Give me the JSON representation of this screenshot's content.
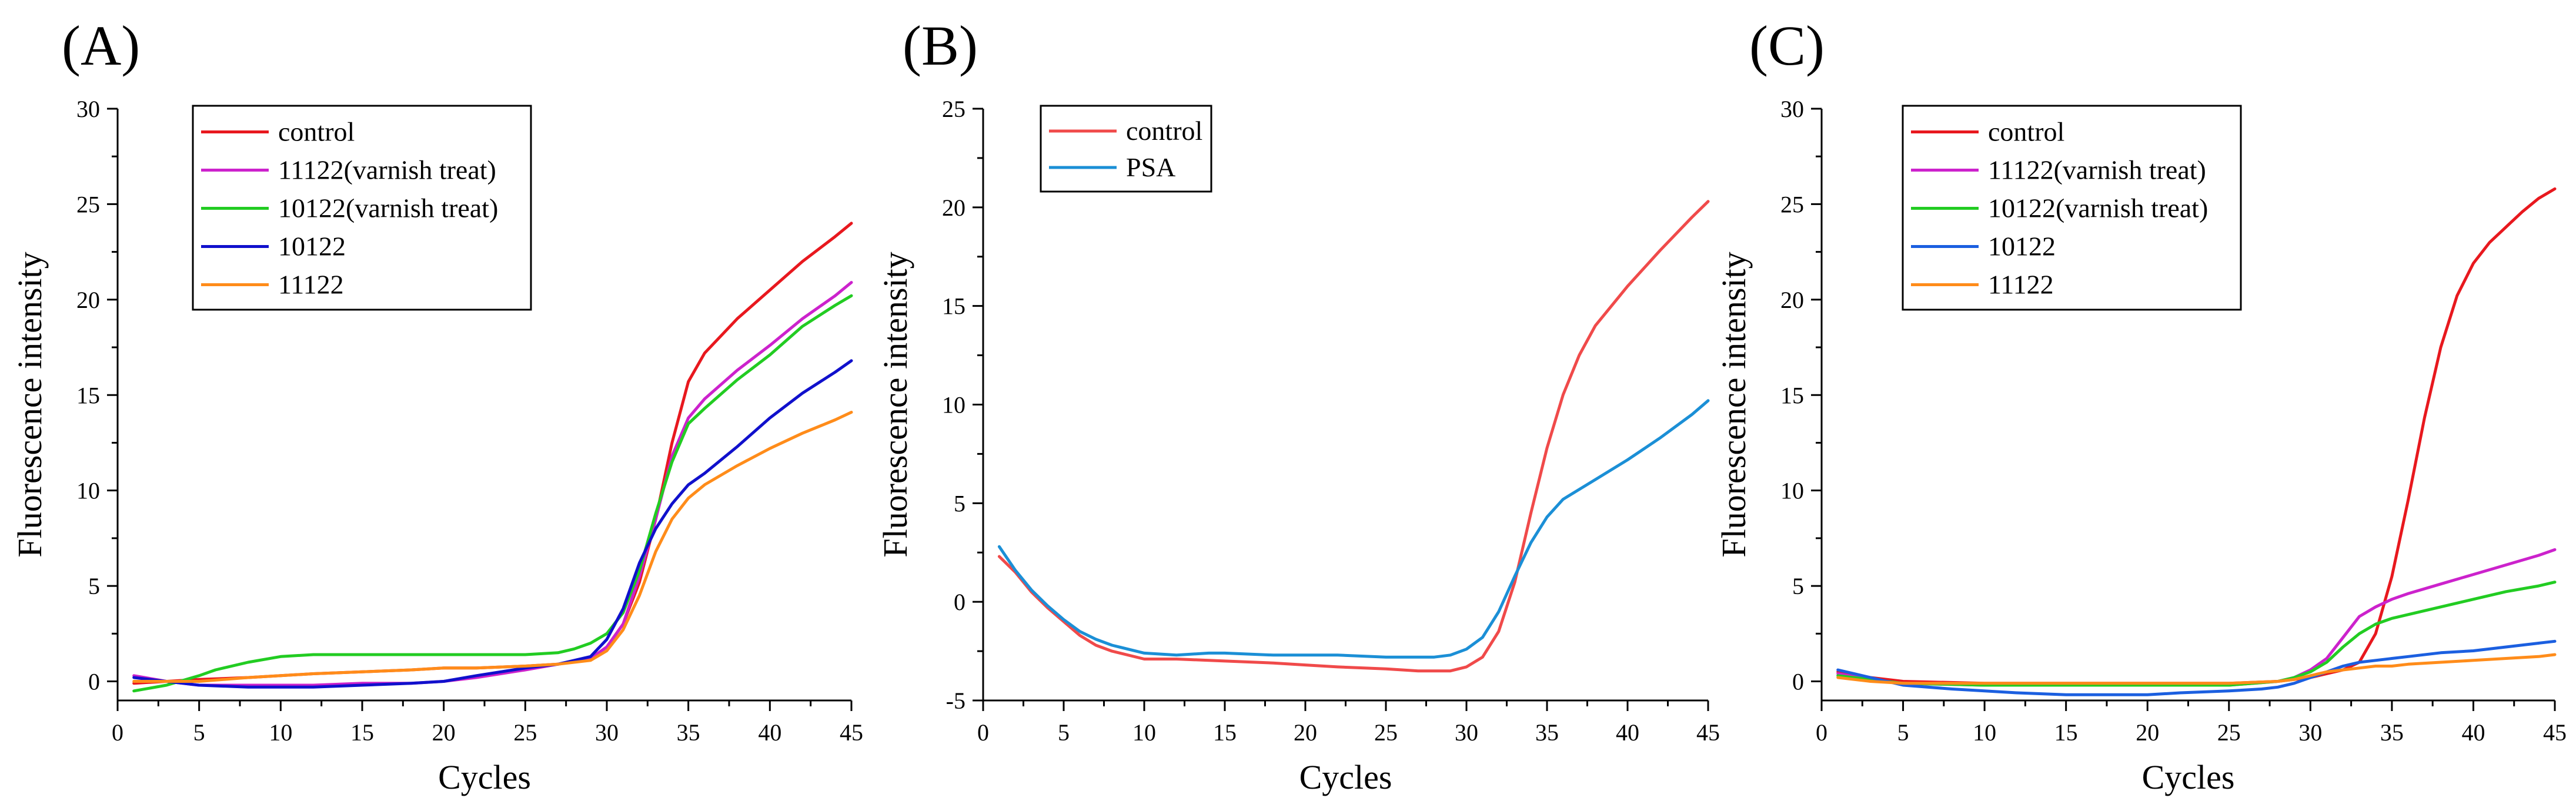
{
  "figure": {
    "panel_count": 3
  },
  "chart_data": [
    {
      "type": "line",
      "panel_label": "(A)",
      "xlabel": "Cycles",
      "ylabel": "Fluorescence intensity",
      "xlim": [
        0,
        45
      ],
      "ylim": [
        -1,
        30
      ],
      "xticks": [
        0,
        5,
        10,
        15,
        20,
        25,
        30,
        35,
        40,
        45
      ],
      "yticks": [
        0,
        5,
        10,
        15,
        20,
        25,
        30
      ],
      "legend": "top-left",
      "series": [
        {
          "name": "control",
          "color": "#e8181e",
          "x": [
            1,
            3,
            5,
            8,
            10,
            12,
            15,
            18,
            20,
            22,
            25,
            27,
            29,
            30,
            31,
            32,
            33,
            34,
            35,
            36,
            38,
            40,
            42,
            44,
            45
          ],
          "y": [
            -0.1,
            0,
            0.1,
            0.2,
            0.3,
            0.4,
            0.5,
            0.6,
            0.7,
            0.7,
            0.8,
            0.9,
            1.2,
            1.8,
            3.0,
            5.2,
            8.5,
            12.5,
            15.7,
            17.2,
            19.0,
            20.5,
            22.0,
            23.3,
            24.0
          ]
        },
        {
          "name": "11122(varnish treat)",
          "color": "#cc22cc",
          "x": [
            1,
            3,
            5,
            8,
            10,
            12,
            15,
            18,
            20,
            22,
            25,
            27,
            29,
            30,
            31,
            32,
            33,
            34,
            35,
            36,
            38,
            40,
            42,
            44,
            45
          ],
          "y": [
            0.3,
            0,
            -0.2,
            -0.2,
            -0.2,
            -0.2,
            -0.1,
            -0.1,
            0,
            0.2,
            0.6,
            0.9,
            1.2,
            1.8,
            3.0,
            5.5,
            8.5,
            11.8,
            13.8,
            14.8,
            16.3,
            17.6,
            19.0,
            20.2,
            20.9
          ]
        },
        {
          "name": "10122(varnish treat)",
          "color": "#22cc22",
          "x": [
            1,
            3,
            5,
            6,
            8,
            10,
            12,
            15,
            18,
            20,
            22,
            25,
            27,
            28,
            29,
            30,
            31,
            32,
            33,
            34,
            35,
            36,
            38,
            40,
            42,
            44,
            45
          ],
          "y": [
            -0.5,
            -0.2,
            0.3,
            0.6,
            1.0,
            1.3,
            1.4,
            1.4,
            1.4,
            1.4,
            1.4,
            1.4,
            1.5,
            1.7,
            2.0,
            2.5,
            3.6,
            5.8,
            8.8,
            11.5,
            13.5,
            14.3,
            15.8,
            17.1,
            18.6,
            19.7,
            20.2
          ]
        },
        {
          "name": "10122",
          "color": "#1010cc",
          "x": [
            1,
            3,
            5,
            8,
            10,
            12,
            15,
            18,
            20,
            22,
            25,
            27,
            29,
            30,
            31,
            32,
            33,
            34,
            35,
            36,
            38,
            40,
            42,
            44,
            45
          ],
          "y": [
            0.2,
            0,
            -0.2,
            -0.3,
            -0.3,
            -0.3,
            -0.2,
            -0.1,
            0,
            0.3,
            0.7,
            0.9,
            1.3,
            2.2,
            3.8,
            6.2,
            8.0,
            9.3,
            10.3,
            10.9,
            12.3,
            13.8,
            15.1,
            16.2,
            16.8
          ]
        },
        {
          "name": "11122",
          "color": "#ff8c1a",
          "x": [
            1,
            3,
            5,
            8,
            10,
            12,
            15,
            18,
            20,
            22,
            25,
            27,
            29,
            30,
            31,
            32,
            33,
            34,
            35,
            36,
            38,
            40,
            42,
            44,
            45
          ],
          "y": [
            0,
            0,
            0,
            0.2,
            0.3,
            0.4,
            0.5,
            0.6,
            0.7,
            0.7,
            0.8,
            0.9,
            1.1,
            1.6,
            2.7,
            4.5,
            6.8,
            8.5,
            9.6,
            10.3,
            11.3,
            12.2,
            13.0,
            13.7,
            14.1
          ]
        }
      ]
    },
    {
      "type": "line",
      "panel_label": "(B)",
      "xlabel": "Cycles",
      "ylabel": "Fluorescence intensity",
      "xlim": [
        0,
        45
      ],
      "ylim": [
        -5,
        25
      ],
      "xticks": [
        0,
        5,
        10,
        15,
        20,
        25,
        30,
        35,
        40,
        45
      ],
      "yticks": [
        -5,
        0,
        5,
        10,
        15,
        20,
        25
      ],
      "legend": "top-left",
      "series": [
        {
          "name": "control",
          "color": "#f04a4a",
          "x": [
            1,
            2,
            3,
            4,
            5,
            6,
            7,
            8,
            10,
            12,
            15,
            18,
            20,
            22,
            25,
            27,
            28,
            29,
            30,
            31,
            32,
            33,
            34,
            35,
            36,
            37,
            38,
            40,
            42,
            44,
            45
          ],
          "y": [
            2.3,
            1.5,
            0.5,
            -0.3,
            -1.0,
            -1.7,
            -2.2,
            -2.5,
            -2.9,
            -2.9,
            -3.0,
            -3.1,
            -3.2,
            -3.3,
            -3.4,
            -3.5,
            -3.5,
            -3.5,
            -3.3,
            -2.8,
            -1.5,
            1.0,
            4.5,
            7.8,
            10.5,
            12.5,
            14.0,
            16.0,
            17.8,
            19.5,
            20.3
          ]
        },
        {
          "name": "PSA",
          "color": "#1b8fd6",
          "x": [
            1,
            2,
            3,
            4,
            5,
            6,
            7,
            8,
            10,
            12,
            14,
            15,
            18,
            20,
            22,
            25,
            27,
            28,
            29,
            30,
            31,
            32,
            33,
            34,
            35,
            36,
            38,
            40,
            42,
            44,
            45
          ],
          "y": [
            2.8,
            1.6,
            0.6,
            -0.2,
            -0.9,
            -1.5,
            -1.9,
            -2.2,
            -2.6,
            -2.7,
            -2.6,
            -2.6,
            -2.7,
            -2.7,
            -2.7,
            -2.8,
            -2.8,
            -2.8,
            -2.7,
            -2.4,
            -1.8,
            -0.5,
            1.3,
            3.0,
            4.3,
            5.2,
            6.2,
            7.2,
            8.3,
            9.5,
            10.2
          ]
        }
      ]
    },
    {
      "type": "line",
      "panel_label": "(C)",
      "xlabel": "Cycles",
      "ylabel": "Fluorescence intensity",
      "xlim": [
        0,
        45
      ],
      "ylim": [
        -1,
        30
      ],
      "xticks": [
        0,
        5,
        10,
        15,
        20,
        25,
        30,
        35,
        40,
        45
      ],
      "yticks": [
        0,
        5,
        10,
        15,
        20,
        25,
        30
      ],
      "legend": "top-left",
      "series": [
        {
          "name": "control",
          "color": "#e8181e",
          "x": [
            1,
            3,
            5,
            10,
            15,
            20,
            25,
            28,
            29,
            30,
            31,
            32,
            33,
            34,
            35,
            36,
            37,
            38,
            39,
            40,
            41,
            42,
            43,
            44,
            45
          ],
          "y": [
            0.5,
            0.2,
            0,
            -0.1,
            -0.1,
            -0.1,
            -0.1,
            0,
            0.1,
            0.2,
            0.4,
            0.6,
            1.0,
            2.5,
            5.5,
            9.5,
            13.8,
            17.5,
            20.2,
            21.9,
            23.0,
            23.8,
            24.6,
            25.3,
            25.8
          ]
        },
        {
          "name": "11122(varnish treat)",
          "color": "#cc22cc",
          "x": [
            1,
            3,
            5,
            10,
            15,
            20,
            25,
            28,
            29,
            30,
            31,
            32,
            33,
            34,
            35,
            36,
            38,
            40,
            42,
            44,
            45
          ],
          "y": [
            0.4,
            0.1,
            -0.1,
            -0.2,
            -0.2,
            -0.2,
            -0.2,
            0,
            0.2,
            0.6,
            1.2,
            2.3,
            3.4,
            3.9,
            4.3,
            4.6,
            5.1,
            5.6,
            6.1,
            6.6,
            6.9
          ]
        },
        {
          "name": "10122(varnish treat)",
          "color": "#22cc22",
          "x": [
            1,
            3,
            5,
            10,
            15,
            20,
            25,
            28,
            29,
            30,
            31,
            32,
            33,
            34,
            35,
            36,
            38,
            40,
            42,
            44,
            45
          ],
          "y": [
            0.3,
            0.1,
            -0.1,
            -0.2,
            -0.2,
            -0.2,
            -0.2,
            0,
            0.2,
            0.5,
            1.0,
            1.8,
            2.5,
            3.0,
            3.3,
            3.5,
            3.9,
            4.3,
            4.7,
            5.0,
            5.2
          ]
        },
        {
          "name": "10122",
          "color": "#1b5fe0",
          "x": [
            1,
            3,
            5,
            8,
            10,
            12,
            15,
            18,
            20,
            22,
            25,
            27,
            28,
            29,
            30,
            31,
            32,
            33,
            34,
            35,
            36,
            38,
            40,
            42,
            44,
            45
          ],
          "y": [
            0.6,
            0.2,
            -0.2,
            -0.4,
            -0.5,
            -0.6,
            -0.7,
            -0.7,
            -0.7,
            -0.6,
            -0.5,
            -0.4,
            -0.3,
            -0.1,
            0.2,
            0.5,
            0.8,
            1.0,
            1.1,
            1.2,
            1.3,
            1.5,
            1.6,
            1.8,
            2.0,
            2.1
          ]
        },
        {
          "name": "11122",
          "color": "#ff8c1a",
          "x": [
            1,
            3,
            5,
            10,
            15,
            20,
            25,
            28,
            29,
            30,
            31,
            32,
            33,
            34,
            35,
            36,
            38,
            40,
            42,
            44,
            45
          ],
          "y": [
            0.2,
            0,
            -0.1,
            -0.1,
            -0.1,
            -0.1,
            -0.1,
            0,
            0.1,
            0.3,
            0.5,
            0.6,
            0.7,
            0.8,
            0.8,
            0.9,
            1.0,
            1.1,
            1.2,
            1.3,
            1.4
          ]
        }
      ]
    }
  ]
}
